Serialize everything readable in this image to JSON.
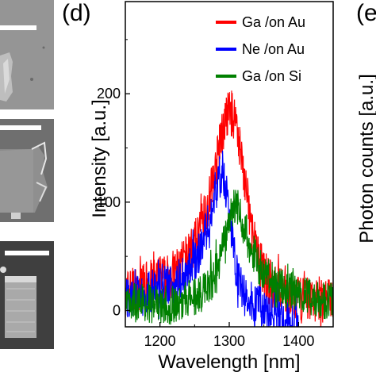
{
  "panels": {
    "d_label": "(d)",
    "e_label": "(e",
    "e_ylabel": "Photon counts [a.u.]"
  },
  "chart_data": {
    "type": "line",
    "xlabel": "Wavelength [nm]",
    "ylabel": "Intensity [a.u.]",
    "xlim": [
      1150,
      1450
    ],
    "ylim": [
      -15,
      285
    ],
    "xticks": [
      1200,
      1300,
      1400
    ],
    "yticks": [
      0,
      100,
      200
    ],
    "legend_position": "top-right",
    "series": [
      {
        "name": "Ga /on Au",
        "color": "#ff0000",
        "x": [
          1150,
          1160,
          1170,
          1180,
          1190,
          1200,
          1210,
          1220,
          1230,
          1240,
          1250,
          1260,
          1270,
          1280,
          1290,
          1300,
          1310,
          1320,
          1330,
          1340,
          1350,
          1360,
          1370,
          1380,
          1390,
          1400,
          1410,
          1420,
          1430,
          1440,
          1450
        ],
        "y": [
          15,
          20,
          20,
          25,
          25,
          30,
          30,
          35,
          40,
          50,
          60,
          80,
          100,
          130,
          165,
          185,
          175,
          130,
          85,
          50,
          35,
          25,
          20,
          15,
          10,
          10,
          10,
          10,
          10,
          10,
          10
        ]
      },
      {
        "name": "Ne /on Au",
        "color": "#0000ff",
        "x": [
          1150,
          1160,
          1170,
          1180,
          1190,
          1200,
          1210,
          1220,
          1230,
          1240,
          1250,
          1260,
          1270,
          1280,
          1290,
          1300,
          1310,
          1320,
          1330,
          1340,
          1350,
          1360,
          1370,
          1380,
          1390,
          1400
        ],
        "y": [
          10,
          12,
          15,
          15,
          18,
          20,
          22,
          25,
          30,
          35,
          45,
          60,
          80,
          110,
          130,
          90,
          40,
          15,
          10,
          5,
          0,
          -5,
          -5,
          -10,
          -10,
          -12
        ]
      },
      {
        "name": "Ga /on Si",
        "color": "#008000",
        "x": [
          1150,
          1160,
          1170,
          1180,
          1190,
          1200,
          1210,
          1220,
          1230,
          1240,
          1250,
          1260,
          1270,
          1280,
          1290,
          1300,
          1310,
          1320,
          1330,
          1340,
          1350,
          1360,
          1370,
          1380,
          1390,
          1400,
          1410,
          1420,
          1430,
          1440,
          1450
        ],
        "y": [
          10,
          10,
          8,
          8,
          5,
          5,
          5,
          5,
          8,
          10,
          12,
          15,
          20,
          35,
          55,
          85,
          100,
          80,
          60,
          45,
          35,
          28,
          25,
          20,
          18,
          15,
          12,
          12,
          10,
          10,
          10
        ]
      }
    ]
  }
}
